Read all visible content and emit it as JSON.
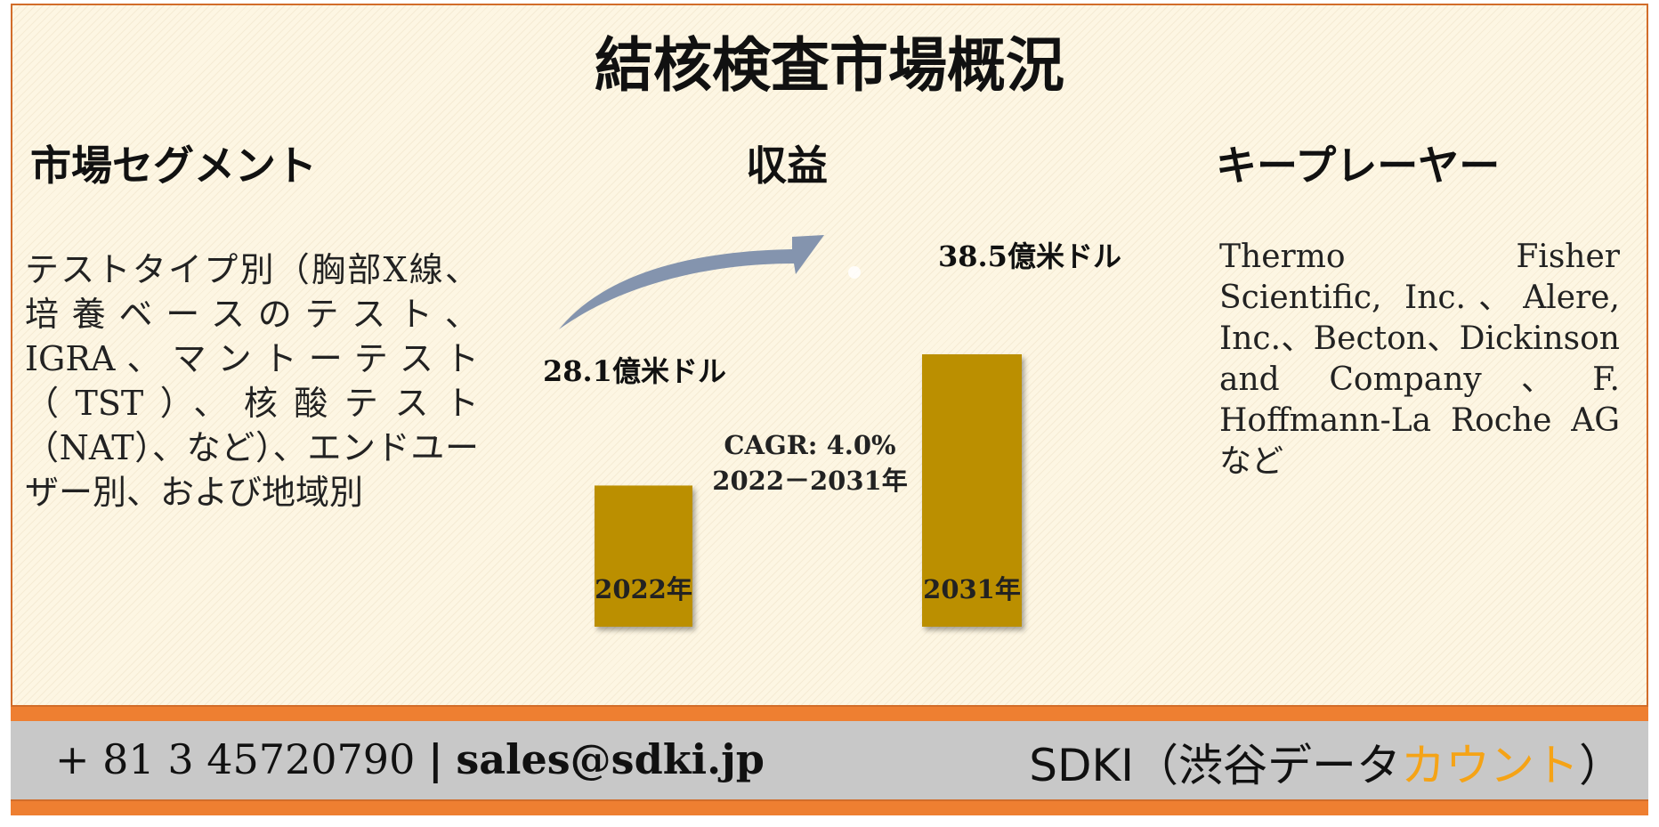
{
  "title": "結核検査市場概況",
  "segment": {
    "heading": "市場セグメント",
    "text": "テストタイプ別（胸部X線、培養ベースのテスト、IGRA、マントーテスト（TST）、核酸テスト（NAT）、など）、エンドユーザー別、および地域別"
  },
  "revenue": {
    "heading": "収益"
  },
  "players": {
    "heading": "キープレーヤー",
    "text": "Thermo Fisher Scientific, Inc.、Alere, Inc.、Becton、Dickinson and Company、F. Hoffmann-La Roche AGなど"
  },
  "chart_data": {
    "type": "bar",
    "categories": [
      "2022年",
      "2031年"
    ],
    "values": [
      28.1,
      38.5
    ],
    "value_labels": [
      "28.1億米ドル",
      "38.5億米ドル"
    ],
    "ylim": [
      0,
      40
    ],
    "cagr_line1": "CAGR: 4.0%",
    "cagr_line2": "2022－2031年",
    "bar_color": "#bb8f03",
    "arrow_color": "#8494ae"
  },
  "footer": {
    "phone": "+ 81 3 45720790",
    "separator": "|",
    "email": "sales@sdki.jp",
    "brand_main": "SDKI（渋谷データ",
    "brand_accent": "カウント",
    "brand_end": "）",
    "accent_color": "#f5a316",
    "stripe_color": "#ee7f31"
  }
}
